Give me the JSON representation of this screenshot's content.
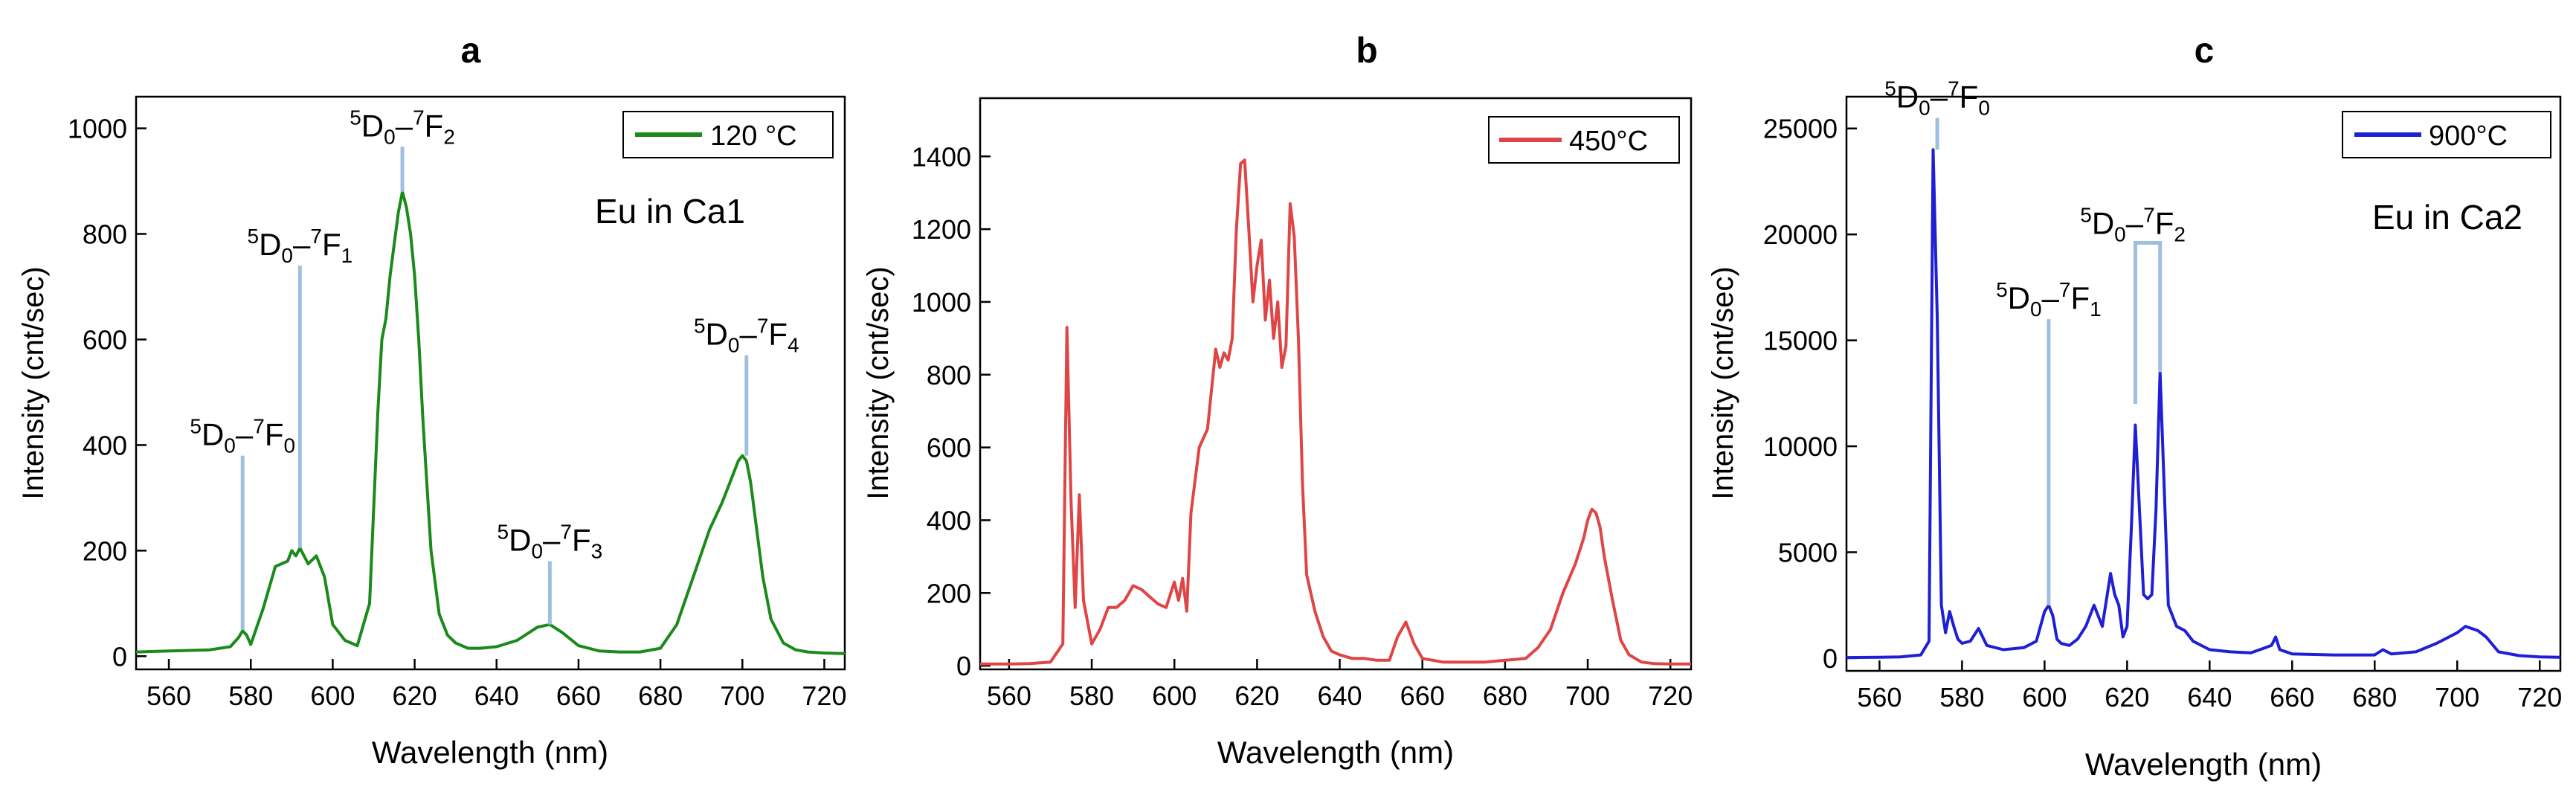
{
  "figure": {
    "panel_letters": [
      "a",
      "b",
      "c"
    ]
  },
  "chart_data": [
    {
      "panel": "a",
      "type": "line",
      "xlabel": "Wavelength (nm)",
      "ylabel": "Intensity (cnt/sec)",
      "xlim": [
        552,
        725
      ],
      "ylim": [
        -25,
        1060
      ],
      "xticks": [
        560,
        580,
        600,
        620,
        640,
        660,
        680,
        700,
        720
      ],
      "yticks": [
        0,
        200,
        400,
        600,
        800,
        1000
      ],
      "legend": {
        "label": "120 °C",
        "color": "#1a8a1a",
        "position": "top-right"
      },
      "annotation_text": "Eu in Ca1",
      "series": [
        {
          "name": "120 °C",
          "color": "#1a8a1a",
          "x": [
            552,
            560,
            570,
            575,
            577,
            578,
            579,
            580,
            583,
            586,
            589,
            590,
            591,
            592,
            594,
            596,
            598,
            600,
            603,
            606,
            609,
            611,
            612,
            613,
            614,
            615,
            616,
            617,
            618,
            619,
            620,
            621,
            622,
            624,
            626,
            628,
            630,
            633,
            636,
            640,
            645,
            650,
            653,
            656,
            660,
            665,
            670,
            675,
            680,
            684,
            688,
            692,
            695,
            697,
            699,
            700,
            701,
            702,
            703,
            705,
            707,
            710,
            713,
            716,
            720,
            725
          ],
          "y": [
            8,
            10,
            12,
            18,
            35,
            48,
            40,
            22,
            90,
            170,
            180,
            200,
            190,
            205,
            175,
            190,
            150,
            60,
            30,
            20,
            100,
            460,
            600,
            640,
            720,
            780,
            840,
            880,
            850,
            800,
            720,
            600,
            450,
            200,
            80,
            40,
            25,
            15,
            15,
            18,
            30,
            55,
            60,
            45,
            20,
            10,
            8,
            8,
            15,
            60,
            150,
            240,
            290,
            330,
            370,
            380,
            370,
            330,
            270,
            150,
            70,
            25,
            12,
            8,
            6,
            5
          ]
        }
      ],
      "labels": [
        {
          "text": "5D0–7F0",
          "x": 578,
          "y_top": 380,
          "y_bottom": 50
        },
        {
          "text": "5D0–7F1",
          "x": 592,
          "y_top": 740,
          "y_bottom": 205
        },
        {
          "text": "5D0–7F2",
          "x": 617,
          "y_top": 965,
          "y_bottom": 880
        },
        {
          "text": "5D0–7F3",
          "x": 653,
          "y_top": 180,
          "y_bottom": 60
        },
        {
          "text": "5D0–7F4",
          "x": 701,
          "y_top": 570,
          "y_bottom": 380
        }
      ]
    },
    {
      "panel": "b",
      "type": "line",
      "xlabel": "Wavelength (nm)",
      "ylabel": "Intensity (cnt/sec)",
      "xlim": [
        553,
        725
      ],
      "ylim": [
        -10,
        1560
      ],
      "xticks": [
        560,
        580,
        600,
        620,
        640,
        660,
        680,
        700,
        720
      ],
      "yticks": [
        0,
        200,
        400,
        600,
        800,
        1000,
        1200,
        1400
      ],
      "legend": {
        "label": "450°C",
        "color": "#e04545",
        "position": "top-right"
      },
      "series": [
        {
          "name": "450°C",
          "color": "#e04545",
          "x": [
            553,
            560,
            565,
            570,
            573,
            574,
            575,
            576,
            577,
            578,
            579,
            580,
            582,
            584,
            586,
            588,
            590,
            592,
            594,
            596,
            598,
            600,
            601,
            602,
            603,
            604,
            606,
            608,
            610,
            611,
            612,
            613,
            614,
            615,
            616,
            617,
            618,
            619,
            620,
            621,
            622,
            623,
            624,
            625,
            626,
            627,
            628,
            629,
            630,
            631,
            632,
            634,
            636,
            638,
            640,
            643,
            646,
            649,
            652,
            654,
            656,
            658,
            660,
            665,
            670,
            675,
            680,
            685,
            688,
            691,
            694,
            697,
            699,
            700,
            701,
            702,
            703,
            704,
            706,
            708,
            710,
            713,
            716,
            720,
            725
          ],
          "y": [
            5,
            5,
            6,
            10,
            60,
            930,
            450,
            160,
            470,
            180,
            120,
            60,
            100,
            160,
            160,
            180,
            220,
            210,
            190,
            170,
            160,
            230,
            180,
            240,
            150,
            420,
            600,
            650,
            870,
            820,
            860,
            840,
            900,
            1200,
            1380,
            1390,
            1200,
            1000,
            1100,
            1170,
            950,
            1060,
            900,
            1000,
            820,
            880,
            1270,
            1180,
            900,
            500,
            250,
            150,
            80,
            40,
            30,
            20,
            20,
            15,
            15,
            80,
            120,
            60,
            20,
            10,
            10,
            10,
            15,
            20,
            50,
            100,
            200,
            280,
            350,
            400,
            430,
            420,
            380,
            300,
            180,
            70,
            30,
            10,
            6,
            5,
            5
          ]
        }
      ]
    },
    {
      "panel": "c",
      "type": "line",
      "xlabel": "Wavelength (nm)",
      "ylabel": "Intensity (cnt/sec)",
      "xlim": [
        552,
        725
      ],
      "ylim": [
        -600,
        26500
      ],
      "xticks": [
        560,
        580,
        600,
        620,
        640,
        660,
        680,
        700,
        720
      ],
      "yticks": [
        0,
        5000,
        10000,
        15000,
        20000,
        25000
      ],
      "legend": {
        "label": "900°C",
        "color": "#1f1fd6",
        "position": "top-right"
      },
      "annotation_text": "Eu in Ca2",
      "series": [
        {
          "name": "900°C",
          "color": "#1f1fd6",
          "x": [
            552,
            560,
            565,
            570,
            572,
            573,
            574,
            575,
            576,
            577,
            578,
            579,
            580,
            582,
            584,
            586,
            590,
            595,
            598,
            600,
            601,
            602,
            603,
            604,
            606,
            608,
            610,
            612,
            614,
            616,
            617,
            618,
            619,
            620,
            621,
            622,
            623,
            624,
            625,
            626,
            627,
            628,
            629,
            630,
            632,
            634,
            636,
            640,
            645,
            650,
            655,
            656,
            657,
            660,
            670,
            680,
            682,
            684,
            690,
            695,
            700,
            702,
            705,
            707,
            710,
            715,
            720,
            725
          ],
          "y": [
            30,
            40,
            60,
            150,
            800,
            24000,
            16000,
            2500,
            1200,
            2200,
            1500,
            900,
            700,
            800,
            1400,
            600,
            400,
            500,
            800,
            2200,
            2500,
            2000,
            900,
            700,
            600,
            900,
            1500,
            2500,
            1500,
            4000,
            3000,
            2500,
            1000,
            1500,
            6000,
            11000,
            7000,
            3000,
            2800,
            3000,
            7000,
            13500,
            8000,
            2500,
            1500,
            1300,
            800,
            400,
            300,
            250,
            600,
            1000,
            400,
            200,
            150,
            150,
            400,
            200,
            300,
            700,
            1200,
            1500,
            1300,
            1000,
            300,
            120,
            60,
            40
          ]
        }
      ],
      "labels": [
        {
          "text": "5D0–7F0",
          "x": 574,
          "y_top": 25500,
          "y_bottom": 24000
        },
        {
          "text": "5D0–7F1",
          "x": 601,
          "y_top": 16000,
          "y_bottom": 2500
        },
        {
          "text": "5D0–7F2",
          "x_left": 622,
          "x_right": 628,
          "y_top": 19600,
          "y_bottom_left": 12000,
          "y_bottom_right": 13500
        }
      ]
    }
  ]
}
